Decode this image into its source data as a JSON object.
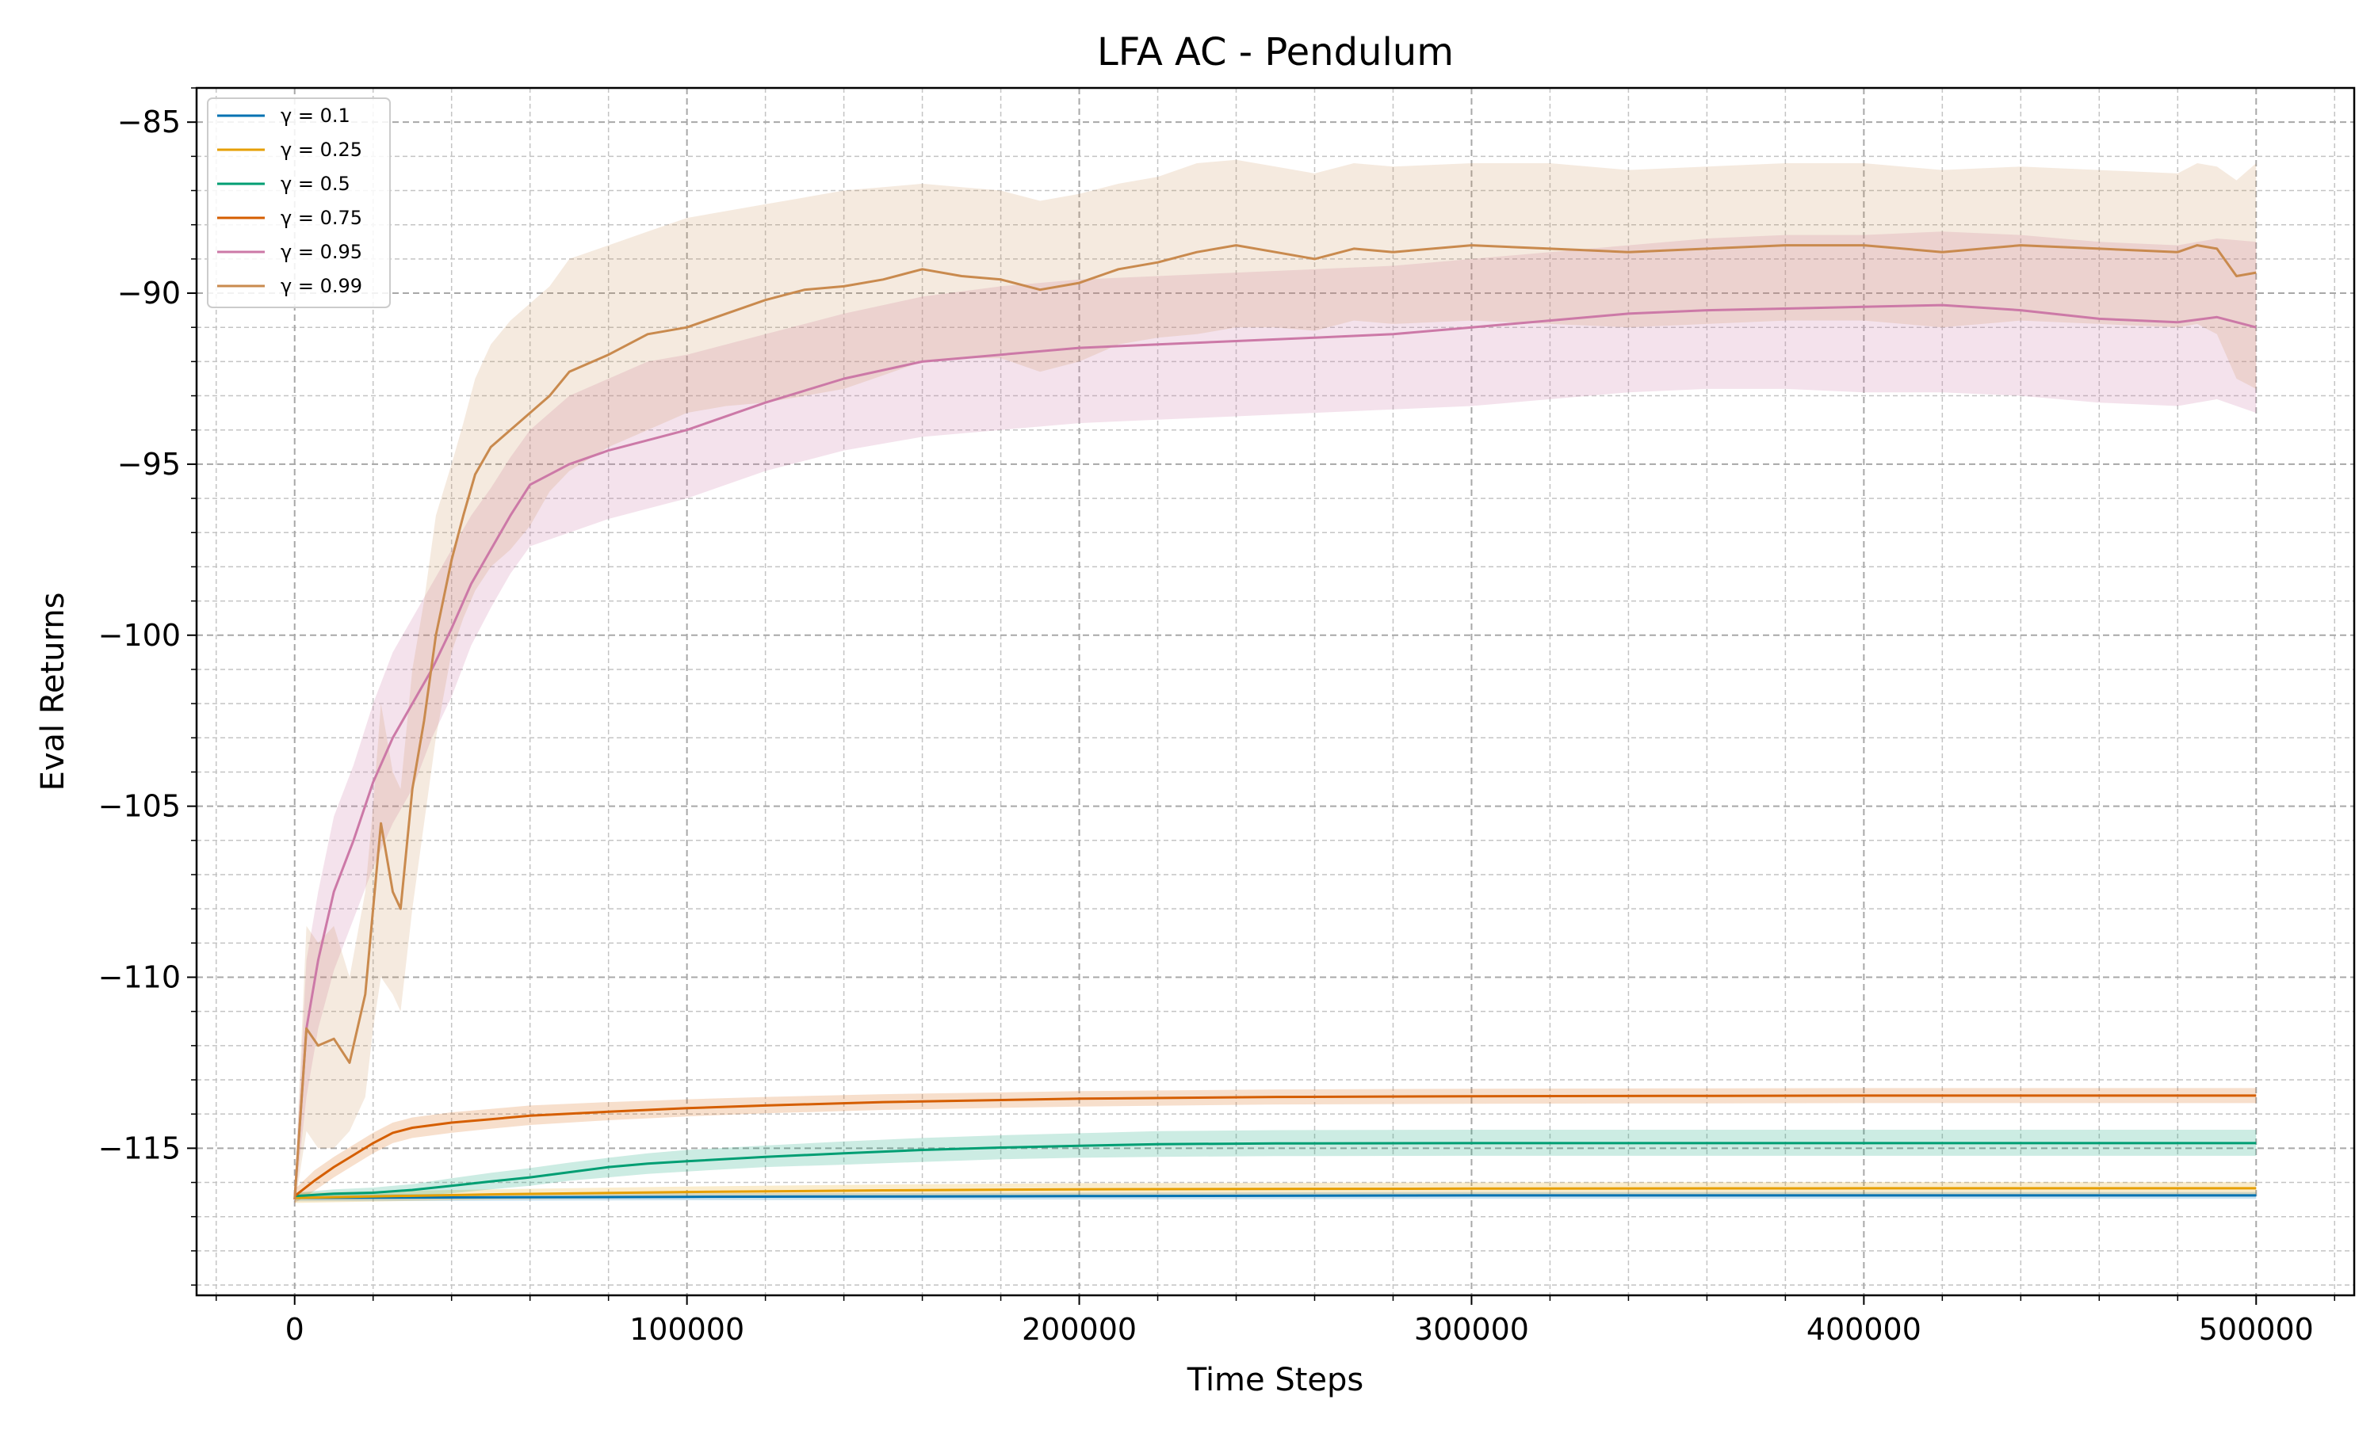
{
  "chart_data": {
    "type": "line",
    "title": "LFA AC - Pendulum",
    "xlabel": "Time Steps",
    "ylabel": "Eval Returns",
    "xlim": [
      -25000,
      525000
    ],
    "ylim": [
      -119.3,
      -84.0
    ],
    "x_ticks": [
      0,
      100000,
      200000,
      300000,
      400000,
      500000
    ],
    "x_tick_labels": [
      "0",
      "100000",
      "200000",
      "300000",
      "400000",
      "500000"
    ],
    "y_ticks": [
      -115,
      -110,
      -105,
      -100,
      -95,
      -90,
      -85
    ],
    "y_tick_labels": [
      "−115",
      "−110",
      "−105",
      "−100",
      "−95",
      "−90",
      "−85"
    ],
    "grid": "major and minor, dashed",
    "legend_position": "upper-left",
    "series": [
      {
        "name": "γ = 0.1",
        "color": "#0072b2",
        "x": [
          0,
          100000,
          200000,
          300000,
          400000,
          500000
        ],
        "y": [
          -116.45,
          -116.42,
          -116.4,
          -116.38,
          -116.38,
          -116.38
        ],
        "lower": [
          -116.55,
          -116.52,
          -116.5,
          -116.48,
          -116.48,
          -116.48
        ],
        "upper": [
          -116.35,
          -116.32,
          -116.3,
          -116.28,
          -116.28,
          -116.28
        ]
      },
      {
        "name": "γ = 0.25",
        "color": "#e69f00",
        "x": [
          0,
          50000,
          100000,
          150000,
          200000,
          300000,
          400000,
          500000
        ],
        "y": [
          -116.45,
          -116.35,
          -116.28,
          -116.23,
          -116.2,
          -116.18,
          -116.17,
          -116.17
        ],
        "lower": [
          -116.6,
          -116.5,
          -116.45,
          -116.4,
          -116.38,
          -116.36,
          -116.35,
          -116.35
        ],
        "upper": [
          -116.3,
          -116.2,
          -116.12,
          -116.06,
          -116.02,
          -116.0,
          -115.99,
          -115.99
        ]
      },
      {
        "name": "γ = 0.5",
        "color": "#009e73",
        "x": [
          0,
          10000,
          20000,
          30000,
          40000,
          50000,
          60000,
          70000,
          80000,
          90000,
          100000,
          120000,
          140000,
          160000,
          180000,
          200000,
          220000,
          250000,
          300000,
          350000,
          400000,
          450000,
          500000
        ],
        "y": [
          -116.4,
          -116.33,
          -116.3,
          -116.22,
          -116.1,
          -115.97,
          -115.85,
          -115.7,
          -115.55,
          -115.45,
          -115.38,
          -115.25,
          -115.15,
          -115.05,
          -114.98,
          -114.93,
          -114.88,
          -114.86,
          -114.85,
          -114.85,
          -114.85,
          -114.85,
          -114.85
        ],
        "lower": [
          -116.5,
          -116.45,
          -116.45,
          -116.4,
          -116.32,
          -116.2,
          -116.1,
          -115.95,
          -115.85,
          -115.75,
          -115.68,
          -115.55,
          -115.48,
          -115.4,
          -115.32,
          -115.28,
          -115.25,
          -115.23,
          -115.22,
          -115.22,
          -115.22,
          -115.22,
          -115.22
        ],
        "upper": [
          -116.3,
          -116.2,
          -116.15,
          -116.05,
          -115.88,
          -115.72,
          -115.58,
          -115.42,
          -115.28,
          -115.15,
          -115.05,
          -114.92,
          -114.8,
          -114.7,
          -114.62,
          -114.56,
          -114.5,
          -114.47,
          -114.46,
          -114.46,
          -114.46,
          -114.46,
          -114.46
        ]
      },
      {
        "name": "γ = 0.75",
        "color": "#d55e00",
        "x": [
          0,
          5000,
          10000,
          15000,
          20000,
          25000,
          30000,
          40000,
          50000,
          60000,
          80000,
          100000,
          120000,
          150000,
          200000,
          250000,
          300000,
          350000,
          400000,
          450000,
          500000
        ],
        "y": [
          -116.4,
          -115.95,
          -115.55,
          -115.2,
          -114.85,
          -114.55,
          -114.4,
          -114.25,
          -114.15,
          -114.05,
          -113.93,
          -113.83,
          -113.75,
          -113.65,
          -113.55,
          -113.5,
          -113.48,
          -113.47,
          -113.46,
          -113.46,
          -113.46
        ],
        "lower": [
          -116.6,
          -116.25,
          -115.85,
          -115.5,
          -115.15,
          -114.85,
          -114.7,
          -114.55,
          -114.43,
          -114.32,
          -114.18,
          -114.07,
          -113.98,
          -113.88,
          -113.78,
          -113.72,
          -113.7,
          -113.69,
          -113.68,
          -113.68,
          -113.68
        ],
        "upper": [
          -116.2,
          -115.65,
          -115.25,
          -114.9,
          -114.55,
          -114.25,
          -114.1,
          -113.95,
          -113.85,
          -113.75,
          -113.65,
          -113.57,
          -113.5,
          -113.42,
          -113.33,
          -113.28,
          -113.26,
          -113.25,
          -113.24,
          -113.24,
          -113.24
        ]
      },
      {
        "name": "γ = 0.95",
        "color": "#cc79a7",
        "x": [
          0,
          3000,
          6000,
          10000,
          15000,
          20000,
          25000,
          30000,
          35000,
          40000,
          45000,
          50000,
          55000,
          60000,
          70000,
          80000,
          90000,
          100000,
          120000,
          140000,
          160000,
          180000,
          200000,
          220000,
          240000,
          260000,
          280000,
          300000,
          320000,
          340000,
          360000,
          380000,
          400000,
          420000,
          440000,
          460000,
          480000,
          490000,
          500000
        ],
        "y": [
          -116.5,
          -111.5,
          -109.5,
          -107.5,
          -106.0,
          -104.3,
          -103.0,
          -102.0,
          -101.0,
          -99.8,
          -98.5,
          -97.5,
          -96.5,
          -95.6,
          -95.0,
          -94.6,
          -94.3,
          -94.0,
          -93.2,
          -92.5,
          -92.0,
          -91.8,
          -91.6,
          -91.5,
          -91.4,
          -91.3,
          -91.2,
          -91.0,
          -90.8,
          -90.6,
          -90.5,
          -90.45,
          -90.4,
          -90.35,
          -90.5,
          -90.75,
          -90.85,
          -90.7,
          -91.0
        ],
        "lower": [
          -116.7,
          -113.5,
          -111.5,
          -109.8,
          -108.3,
          -106.8,
          -105.5,
          -104.5,
          -103.0,
          -101.8,
          -100.3,
          -99.2,
          -98.2,
          -97.4,
          -97.0,
          -96.6,
          -96.3,
          -96.0,
          -95.2,
          -94.6,
          -94.2,
          -94.0,
          -93.8,
          -93.7,
          -93.6,
          -93.5,
          -93.4,
          -93.3,
          -93.1,
          -92.9,
          -92.8,
          -92.8,
          -92.9,
          -92.9,
          -93.0,
          -93.2,
          -93.3,
          -93.1,
          -93.5
        ],
        "upper": [
          -116.3,
          -109.5,
          -107.5,
          -105.3,
          -103.8,
          -102.0,
          -100.5,
          -99.5,
          -98.5,
          -97.5,
          -96.5,
          -95.7,
          -94.8,
          -94.0,
          -93.0,
          -92.5,
          -92.0,
          -91.8,
          -91.2,
          -90.6,
          -90.1,
          -89.8,
          -89.6,
          -89.5,
          -89.4,
          -89.3,
          -89.2,
          -89.0,
          -88.8,
          -88.6,
          -88.4,
          -88.3,
          -88.3,
          -88.2,
          -88.3,
          -88.5,
          -88.6,
          -88.4,
          -88.5
        ]
      },
      {
        "name": "γ = 0.99",
        "color": "#c98a4e",
        "x": [
          0,
          3000,
          6000,
          10000,
          14000,
          18000,
          20000,
          22000,
          25000,
          27000,
          30000,
          33000,
          36000,
          40000,
          43000,
          46000,
          50000,
          55000,
          60000,
          65000,
          70000,
          80000,
          90000,
          100000,
          110000,
          120000,
          130000,
          140000,
          150000,
          160000,
          170000,
          180000,
          190000,
          200000,
          210000,
          220000,
          230000,
          240000,
          250000,
          260000,
          270000,
          280000,
          300000,
          320000,
          340000,
          360000,
          380000,
          400000,
          420000,
          440000,
          460000,
          480000,
          485000,
          490000,
          495000,
          500000
        ],
        "y": [
          -116.5,
          -111.5,
          -112.0,
          -111.8,
          -112.5,
          -110.5,
          -108.0,
          -105.5,
          -107.5,
          -108.0,
          -104.5,
          -102.5,
          -100.0,
          -97.8,
          -96.5,
          -95.3,
          -94.5,
          -94.0,
          -93.5,
          -93.0,
          -92.3,
          -91.8,
          -91.2,
          -91.0,
          -90.6,
          -90.2,
          -89.9,
          -89.8,
          -89.6,
          -89.3,
          -89.5,
          -89.6,
          -89.9,
          -89.7,
          -89.3,
          -89.1,
          -88.8,
          -88.6,
          -88.8,
          -89.0,
          -88.7,
          -88.8,
          -88.6,
          -88.7,
          -88.8,
          -88.7,
          -88.6,
          -88.6,
          -88.8,
          -88.6,
          -88.7,
          -88.8,
          -88.6,
          -88.7,
          -89.5,
          -89.4
        ],
        "lower": [
          -116.7,
          -114.5,
          -115.0,
          -115.0,
          -114.5,
          -113.5,
          -111.5,
          -110.0,
          -110.5,
          -111.0,
          -108.0,
          -105.5,
          -103.0,
          -100.5,
          -99.5,
          -98.7,
          -98.0,
          -97.5,
          -96.8,
          -95.8,
          -95.2,
          -94.5,
          -94.0,
          -93.5,
          -93.3,
          -93.2,
          -93.0,
          -92.8,
          -92.4,
          -92.0,
          -91.9,
          -91.9,
          -92.3,
          -92.0,
          -91.5,
          -91.3,
          -91.2,
          -91.0,
          -91.0,
          -91.1,
          -90.8,
          -90.9,
          -90.8,
          -90.9,
          -91.0,
          -90.9,
          -90.8,
          -90.8,
          -91.0,
          -90.8,
          -90.9,
          -91.0,
          -90.9,
          -91.2,
          -92.5,
          -92.8
        ],
        "upper": [
          -116.3,
          -108.5,
          -109.0,
          -108.5,
          -110.0,
          -107.5,
          -105.0,
          -102.0,
          -104.0,
          -104.5,
          -101.0,
          -99.0,
          -96.5,
          -95.0,
          -93.8,
          -92.5,
          -91.5,
          -90.8,
          -90.3,
          -89.8,
          -89.0,
          -88.6,
          -88.2,
          -87.8,
          -87.6,
          -87.4,
          -87.2,
          -87.0,
          -86.9,
          -86.8,
          -86.9,
          -87.0,
          -87.3,
          -87.1,
          -86.8,
          -86.6,
          -86.2,
          -86.1,
          -86.3,
          -86.5,
          -86.2,
          -86.3,
          -86.2,
          -86.2,
          -86.4,
          -86.3,
          -86.2,
          -86.2,
          -86.4,
          -86.3,
          -86.4,
          -86.5,
          -86.2,
          -86.3,
          -86.7,
          -86.2
        ]
      }
    ]
  }
}
